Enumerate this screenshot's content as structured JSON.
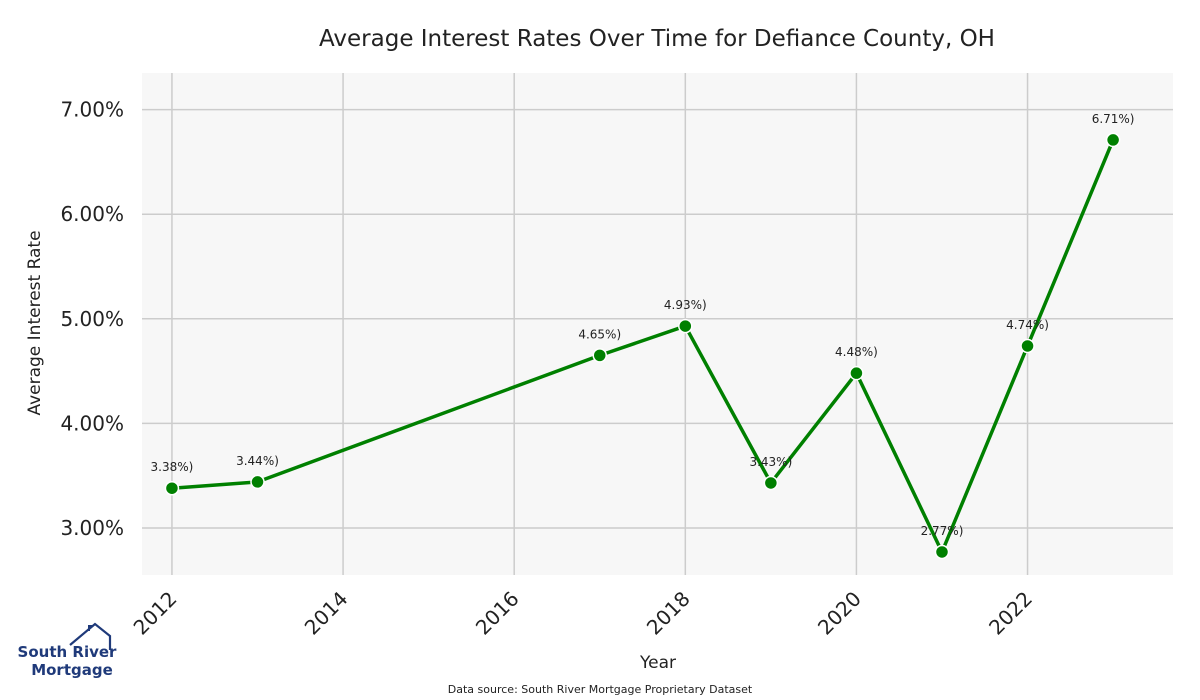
{
  "chart_data": {
    "type": "line",
    "title": "Average Interest Rates Over Time for Defiance County, OH",
    "xlabel": "Year",
    "ylabel": "Average Interest Rate",
    "xlim": [
      2011.65,
      2023.7
    ],
    "ylim": [
      2.55,
      7.35
    ],
    "x_ticks": [
      2012,
      2014,
      2016,
      2018,
      2020,
      2022
    ],
    "y_ticks": [
      3,
      4,
      5,
      6,
      7
    ],
    "y_tick_labels": [
      "3.00%",
      "4.00%",
      "5.00%",
      "6.00%",
      "7.00%"
    ],
    "grid": true,
    "line_color": "#008000",
    "background_color": "#f7f7f7",
    "grid_color": "#cccccc",
    "series": [
      {
        "name": "Average Interest Rate",
        "x": [
          2012,
          2013,
          2017,
          2018,
          2019,
          2020,
          2021,
          2022,
          2023
        ],
        "values": [
          3.38,
          3.44,
          4.65,
          4.93,
          3.43,
          4.48,
          2.77,
          4.74,
          6.71
        ],
        "labels": [
          "3.38%)",
          "3.44%)",
          "4.65%)",
          "4.93%)",
          "3.43%)",
          "4.48%)",
          "2.77%)",
          "4.74%)",
          "6.71%)"
        ]
      }
    ]
  },
  "source": "Data source: South River Mortgage Proprietary Dataset",
  "logo": {
    "line1": "South River",
    "line2": "Mortgage"
  }
}
